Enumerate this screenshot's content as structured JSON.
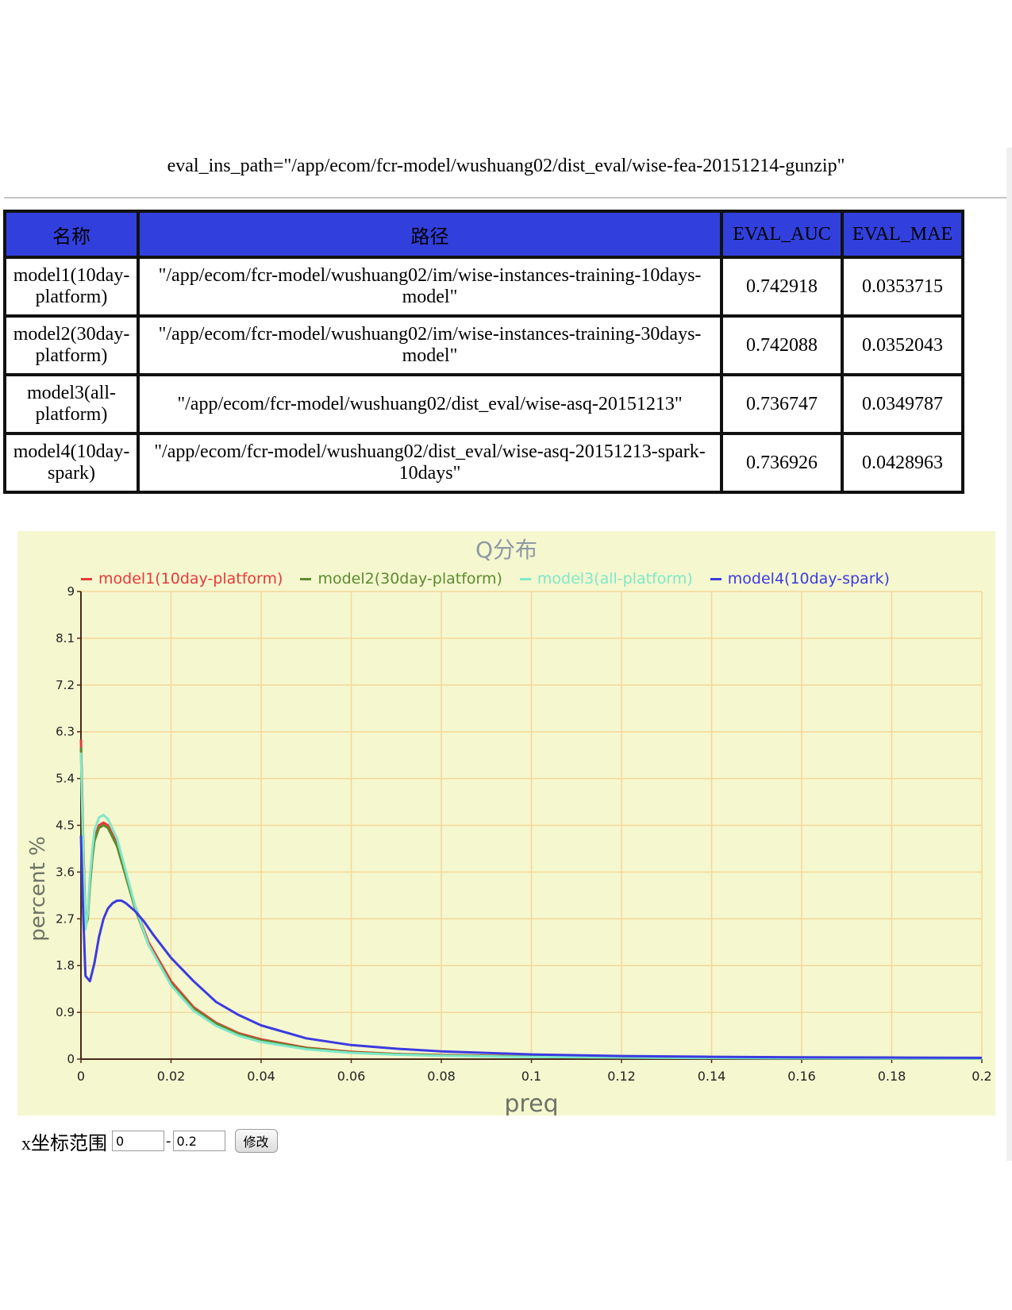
{
  "eval_ins_path": "eval_ins_path=\"/app/ecom/fcr-model/wushuang02/dist_eval/wise-fea-20151214-gunzip\"",
  "table": {
    "headers": [
      "名称",
      "路径",
      "EVAL_AUC",
      "EVAL_MAE"
    ],
    "header_bg": "#3140dc",
    "rows": [
      {
        "name": "model1(10day-platform)",
        "path": "\"/app/ecom/fcr-model/wushuang02/im/wise-instances-training-10days-model\"",
        "auc": "0.742918",
        "mae": "0.0353715"
      },
      {
        "name": "model2(30day-platform)",
        "path": "\"/app/ecom/fcr-model/wushuang02/im/wise-instances-training-30days-model\"",
        "auc": "0.742088",
        "mae": "0.0352043"
      },
      {
        "name": "model3(all-platform)",
        "path": "\"/app/ecom/fcr-model/wushuang02/dist_eval/wise-asq-20151213\"",
        "auc": "0.736747",
        "mae": "0.0349787"
      },
      {
        "name": "model4(10day-spark)",
        "path": "\"/app/ecom/fcr-model/wushuang02/dist_eval/wise-asq-20151213-spark-10days\"",
        "auc": "0.736926",
        "mae": "0.0428963"
      }
    ]
  },
  "chart_data": {
    "type": "line",
    "title": "Q分布",
    "xlabel": "preq",
    "ylabel": "percent %",
    "xlim": [
      0,
      0.2
    ],
    "ylim": [
      0,
      9
    ],
    "xticks": [
      "0",
      "0.02",
      "0.04",
      "0.06",
      "0.08",
      "0.1",
      "0.12",
      "0.14",
      "0.16",
      "0.18",
      "0.2"
    ],
    "yticks": [
      "0",
      "0.9",
      "1.8",
      "2.7",
      "3.6",
      "4.5",
      "5.4",
      "6.3",
      "7.2",
      "8.1",
      "9"
    ],
    "grid": true,
    "legend_position": "top",
    "background": "#f5f7cf",
    "grid_color": "#f4d79a",
    "series": [
      {
        "name": "model1(10day-platform)",
        "color": "#e8393a",
        "x": [
          0,
          0.0005,
          0.001,
          0.0015,
          0.002,
          0.0025,
          0.003,
          0.004,
          0.005,
          0.006,
          0.008,
          0.01,
          0.012,
          0.015,
          0.02,
          0.025,
          0.03,
          0.035,
          0.04,
          0.05,
          0.06,
          0.07,
          0.08,
          0.1,
          0.12,
          0.14,
          0.16,
          0.18,
          0.2
        ],
        "y": [
          6.15,
          4.2,
          2.6,
          2.75,
          3.4,
          3.9,
          4.25,
          4.5,
          4.55,
          4.5,
          4.15,
          3.55,
          2.95,
          2.25,
          1.5,
          1.0,
          0.7,
          0.5,
          0.38,
          0.22,
          0.14,
          0.1,
          0.08,
          0.05,
          0.035,
          0.025,
          0.02,
          0.015,
          0.01
        ]
      },
      {
        "name": "model2(30day-platform)",
        "color": "#5d8b2f",
        "x": [
          0,
          0.0005,
          0.001,
          0.0015,
          0.002,
          0.0025,
          0.003,
          0.004,
          0.005,
          0.006,
          0.008,
          0.01,
          0.012,
          0.015,
          0.02,
          0.025,
          0.03,
          0.035,
          0.04,
          0.05,
          0.06,
          0.07,
          0.08,
          0.1,
          0.12,
          0.14,
          0.16,
          0.18,
          0.2
        ],
        "y": [
          6.0,
          4.1,
          2.55,
          2.7,
          3.35,
          3.85,
          4.2,
          4.45,
          4.5,
          4.45,
          4.1,
          3.5,
          2.9,
          2.2,
          1.45,
          0.97,
          0.68,
          0.48,
          0.36,
          0.21,
          0.13,
          0.095,
          0.075,
          0.048,
          0.033,
          0.024,
          0.018,
          0.014,
          0.01
        ]
      },
      {
        "name": "model3(all-platform)",
        "color": "#7fe8c8",
        "x": [
          0,
          0.0005,
          0.001,
          0.0015,
          0.002,
          0.0025,
          0.003,
          0.004,
          0.005,
          0.006,
          0.008,
          0.01,
          0.012,
          0.015,
          0.02,
          0.025,
          0.03,
          0.035,
          0.04,
          0.05,
          0.06,
          0.07,
          0.08,
          0.1,
          0.12,
          0.14,
          0.16,
          0.18,
          0.2
        ],
        "y": [
          5.9,
          4.0,
          2.5,
          2.8,
          3.5,
          4.0,
          4.4,
          4.65,
          4.7,
          4.62,
          4.25,
          3.6,
          2.95,
          2.2,
          1.42,
          0.93,
          0.64,
          0.45,
          0.33,
          0.19,
          0.12,
          0.085,
          0.065,
          0.042,
          0.03,
          0.022,
          0.016,
          0.012,
          0.009
        ]
      },
      {
        "name": "model4(10day-spark)",
        "color": "#3b3be0",
        "x": [
          0,
          0.0005,
          0.001,
          0.002,
          0.003,
          0.004,
          0.005,
          0.006,
          0.007,
          0.008,
          0.009,
          0.01,
          0.012,
          0.014,
          0.016,
          0.02,
          0.025,
          0.03,
          0.035,
          0.04,
          0.05,
          0.06,
          0.07,
          0.08,
          0.1,
          0.12,
          0.14,
          0.16,
          0.18,
          0.2
        ],
        "y": [
          4.3,
          2.8,
          1.6,
          1.5,
          1.85,
          2.35,
          2.7,
          2.9,
          3.0,
          3.05,
          3.05,
          3.0,
          2.85,
          2.65,
          2.4,
          1.95,
          1.5,
          1.1,
          0.85,
          0.65,
          0.4,
          0.27,
          0.2,
          0.15,
          0.09,
          0.06,
          0.045,
          0.035,
          0.03,
          0.025
        ]
      }
    ]
  },
  "x_range": {
    "label": "x坐标范围",
    "min_value": "0",
    "max_value": "0.2",
    "separator": "-",
    "button_label": "修改"
  }
}
